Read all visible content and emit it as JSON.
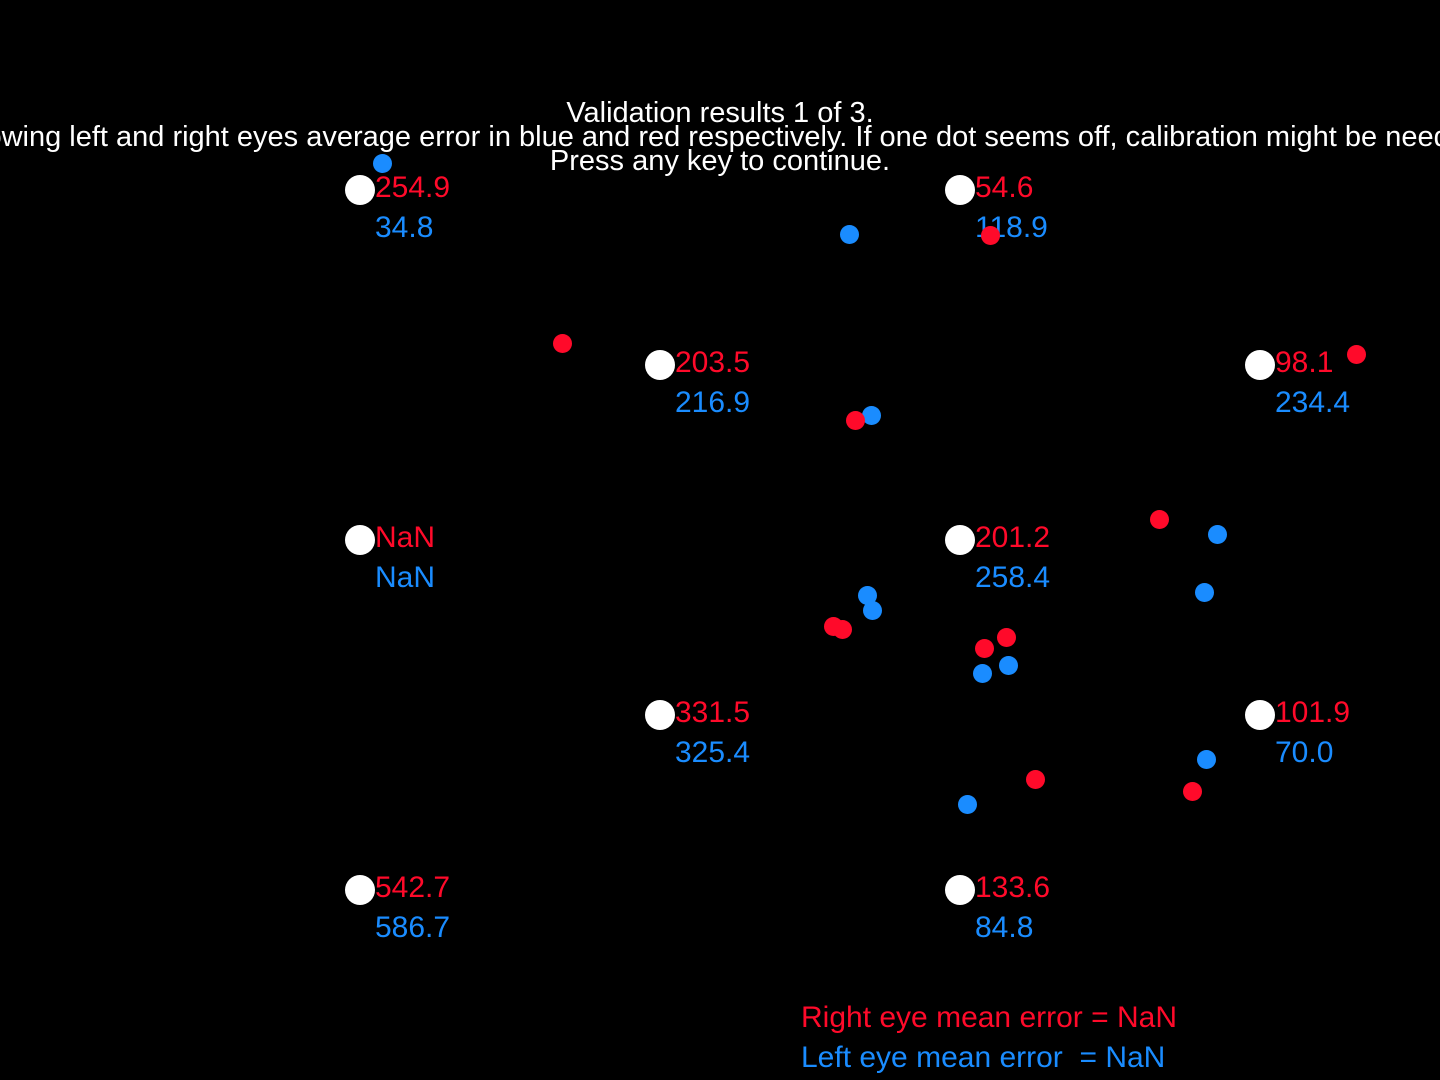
{
  "header": {
    "title": "Validation results 1 of 3.",
    "instructions": "Showing left and right eyes average error in blue and red respectively. If one dot seems off, calibration might be needed.",
    "prompt": "Press any key to continue."
  },
  "colors": {
    "background": "#000000",
    "target": "#ffffff",
    "right_eye": "#ff0a2a",
    "left_eye": "#1a8cff",
    "text": "#ffffff"
  },
  "targets": [
    {
      "id": "top-left",
      "right_error": "254.9",
      "left_error": "34.8"
    },
    {
      "id": "top-center",
      "right_error": "54.6",
      "left_error": "118.9"
    },
    {
      "id": "upper-mid-left",
      "right_error": "203.5",
      "left_error": "216.9"
    },
    {
      "id": "upper-mid-right",
      "right_error": "98.1",
      "left_error": "234.4"
    },
    {
      "id": "middle-left",
      "right_error": "NaN",
      "left_error": "NaN"
    },
    {
      "id": "middle-center",
      "right_error": "201.2",
      "left_error": "258.4"
    },
    {
      "id": "lower-mid-left",
      "right_error": "331.5",
      "left_error": "325.4"
    },
    {
      "id": "lower-mid-right",
      "right_error": "101.9",
      "left_error": "70.0"
    },
    {
      "id": "bottom-left",
      "right_error": "542.7",
      "left_error": "586.7"
    },
    {
      "id": "bottom-center",
      "right_error": "133.6",
      "left_error": "84.8"
    }
  ],
  "summary": {
    "right_eye_mean": "Right eye mean error = NaN",
    "left_eye_mean": "Left eye mean error  = NaN"
  }
}
